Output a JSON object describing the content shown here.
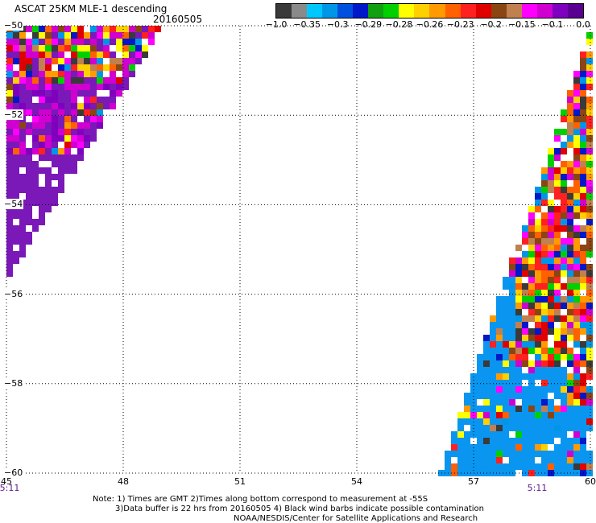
{
  "header": {
    "title": "ASCAT 25KM MLE-1 descending",
    "date": "20160505"
  },
  "colorbar": {
    "colors": [
      "#3a3a3a",
      "#8a8a8a",
      "#00c8ff",
      "#0096e8",
      "#0050e0",
      "#0018c8",
      "#10a010",
      "#00d000",
      "#ffff00",
      "#ffd000",
      "#ff9a00",
      "#ff6000",
      "#ff2020",
      "#e00000",
      "#8b4513",
      "#c08050",
      "#ff00ff",
      "#d000d0",
      "#8000c0",
      "#5a0090"
    ],
    "labels": [
      "-1.0",
      "-0.35",
      "-0.3",
      "-0.29",
      "-0.28",
      "-0.26",
      "-0.23",
      "-0.2",
      "-0.15",
      "-0.1",
      "0.0"
    ]
  },
  "axes": {
    "lon_ticks": [
      "45",
      "48",
      "51",
      "54",
      "57",
      "60"
    ],
    "lat_ticks": [
      "-50",
      "-52",
      "-54",
      "-56",
      "-58",
      "-60"
    ],
    "time_labels": [
      "5:11",
      "5:11"
    ]
  },
  "map_colors": {
    "purple": "#7a18b8",
    "blue": "#0a96f0"
  },
  "notes": {
    "line1": "Note: 1) Times are GMT 2)Times along bottom correspond to measurement at -55S",
    "line2": "3)Data buffer is 22 hrs from 20160505 4) Black wind barbs indicate possible contamination",
    "line3": "NOAA/NESDIS/Center for Satellite Applications and Research"
  }
}
